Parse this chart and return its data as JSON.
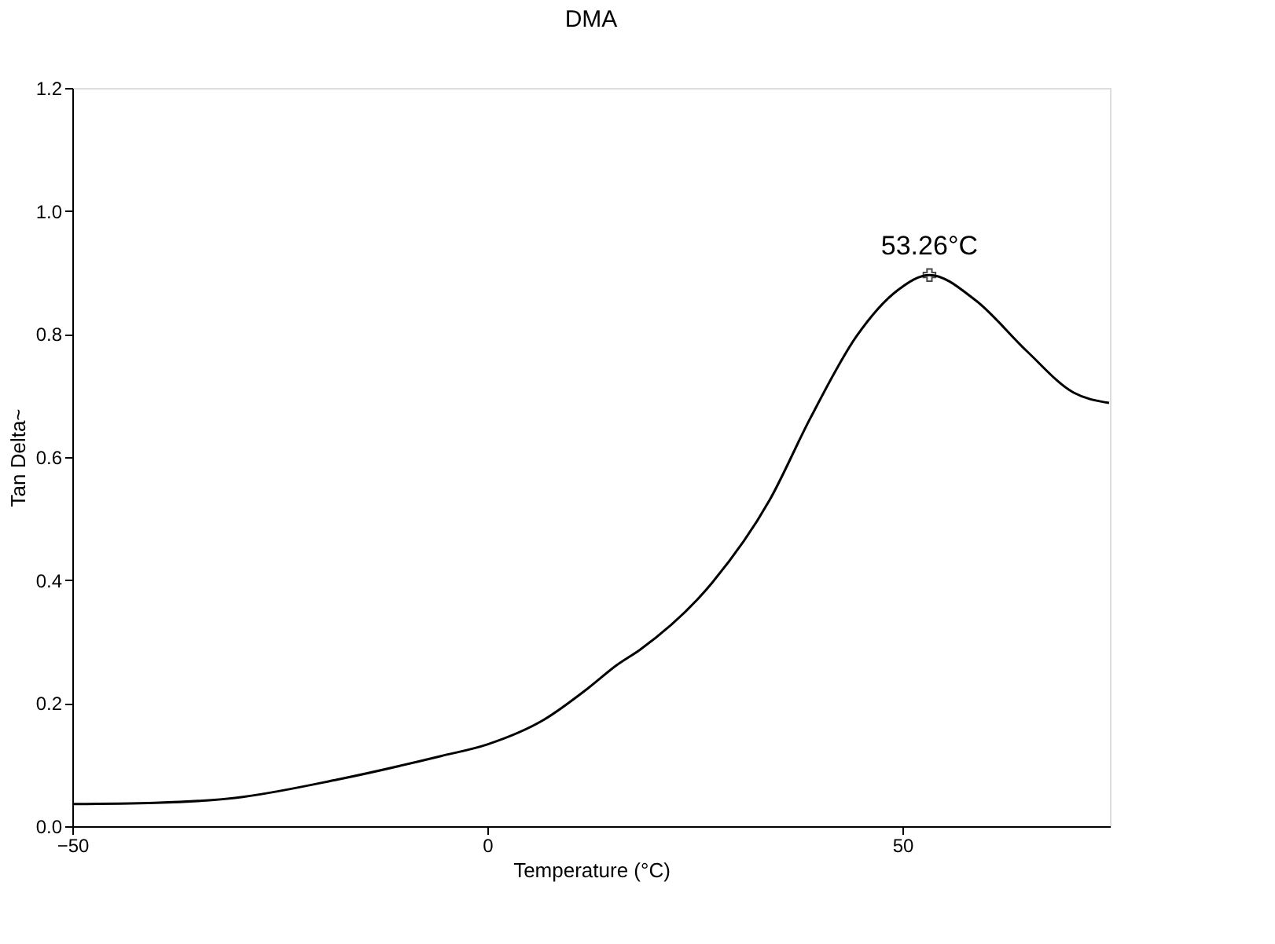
{
  "chart_data": {
    "type": "line",
    "title": "DMA",
    "xlabel": "Temperature (°C)",
    "ylabel": "Tan Delta~",
    "xlim": [
      -50,
      75
    ],
    "xticks": [
      -50,
      0,
      50
    ],
    "ylim": [
      0,
      1.2
    ],
    "yticks": [
      {
        "value": 0,
        "label": "0.0"
      },
      0.2,
      0.4,
      0.6,
      0.8,
      {
        "value": 1,
        "label": "1.0"
      },
      1.2
    ],
    "grid": false,
    "marker": "none",
    "line_style": "solid",
    "series": [
      {
        "color": "#000000",
        "x": [
          -50,
          -40,
          -30.4,
          -18,
          -5.6,
          0,
          6.8,
          12.2,
          15.6,
          18.4,
          27.1,
          34.0,
          38.9,
          44.5,
          49.5,
          53.26,
          58.8,
          65.0,
          70.6,
          74.9
        ],
        "values": [
          0.036,
          0.038,
          0.046,
          0.076,
          0.114,
          0.133,
          0.173,
          0.225,
          0.262,
          0.287,
          0.396,
          0.53,
          0.663,
          0.797,
          0.872,
          0.896,
          0.855,
          0.772,
          0.705,
          0.688
        ]
      }
    ],
    "annotations": [
      {
        "text": "53.26°C",
        "x": 53.26,
        "y": 0.896
      }
    ]
  }
}
